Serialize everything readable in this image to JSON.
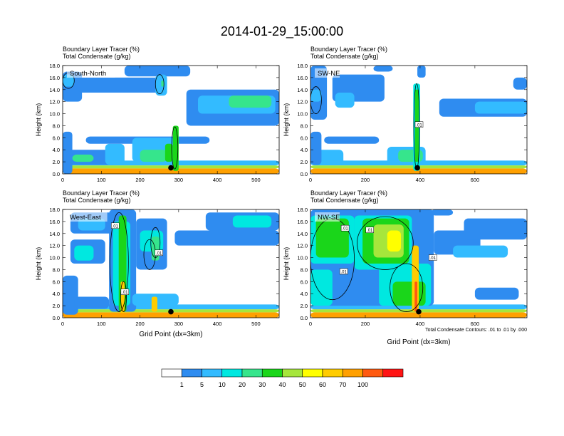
{
  "title": "2014-01-29_15:00:00",
  "palette": {
    "colors": [
      "#ffffff",
      "#2f8cf0",
      "#33bbff",
      "#00e8e0",
      "#36e58c",
      "#1ad61a",
      "#a6e63c",
      "#ffff00",
      "#ffcc00",
      "#ffa000",
      "#ff5a10",
      "#ff1414"
    ],
    "contour_color": "#000000",
    "surface_marker_color": "#000000"
  },
  "chart_data": [
    {
      "type": "contour-cross-section",
      "label": "South-North",
      "title_line1": "Boundary Layer Tracer   (%)",
      "title_line2": "Total Condensate   (g/kg)",
      "ylabel": "Height (km)",
      "xlabel": "",
      "ylim": [
        0,
        18
      ],
      "yticks": [
        "0.0",
        "2.0",
        "4.0",
        "6.0",
        "8.0",
        "10.0",
        "12.0",
        "14.0",
        "16.0",
        "18.0"
      ],
      "xlim": [
        0,
        560
      ],
      "xticks": [
        0,
        100,
        200,
        300,
        400,
        500
      ],
      "marker": {
        "x": 280,
        "y": 1.0
      },
      "contour_labels": [],
      "fields": [
        {
          "x0": 0,
          "x1": 560,
          "y0": 0,
          "y1": 0.9,
          "level": 9
        },
        {
          "x0": 0,
          "x1": 560,
          "y0": 0.9,
          "y1": 1.4,
          "level": 6
        },
        {
          "x0": 0,
          "x1": 560,
          "y0": 1.4,
          "y1": 2.2,
          "level": 2
        },
        {
          "x0": 0,
          "x1": 25,
          "y0": 0,
          "y1": 7,
          "level": 1
        },
        {
          "x0": 10,
          "x1": 140,
          "y0": 1.5,
          "y1": 4,
          "level": 1
        },
        {
          "x0": 25,
          "x1": 80,
          "y0": 2,
          "y1": 3.2,
          "level": 4
        },
        {
          "x0": 110,
          "x1": 160,
          "y0": 1.5,
          "y1": 5,
          "level": 2
        },
        {
          "x0": 60,
          "x1": 380,
          "y0": 5,
          "y1": 6.2,
          "level": 1
        },
        {
          "x0": 180,
          "x1": 290,
          "y0": 2,
          "y1": 6,
          "level": 2
        },
        {
          "x0": 200,
          "x1": 270,
          "y0": 2,
          "y1": 4,
          "level": 4
        },
        {
          "x0": 265,
          "x1": 285,
          "y0": 2,
          "y1": 5,
          "level": 5
        },
        {
          "x0": 285,
          "x1": 300,
          "y0": 0.5,
          "y1": 8,
          "level": 5
        },
        {
          "x0": 0,
          "x1": 50,
          "y0": 12,
          "y1": 17,
          "level": 1
        },
        {
          "x0": 0,
          "x1": 30,
          "y0": 14.5,
          "y1": 16.5,
          "level": 2
        },
        {
          "x0": 40,
          "x1": 250,
          "y0": 13.5,
          "y1": 16,
          "level": 1
        },
        {
          "x0": 160,
          "x1": 330,
          "y0": 16.2,
          "y1": 18,
          "level": 1
        },
        {
          "x0": 240,
          "x1": 270,
          "y0": 13,
          "y1": 16.5,
          "level": 2
        },
        {
          "x0": 255,
          "x1": 262,
          "y0": 14.5,
          "y1": 15.5,
          "level": 4
        },
        {
          "x0": 320,
          "x1": 560,
          "y0": 8,
          "y1": 14,
          "level": 1
        },
        {
          "x0": 350,
          "x1": 550,
          "y0": 10,
          "y1": 13,
          "level": 2
        },
        {
          "x0": 430,
          "x1": 540,
          "y0": 11,
          "y1": 13,
          "level": 4
        }
      ],
      "contours": [
        {
          "x0": 0,
          "x1": 30,
          "y0": 14.2,
          "y1": 16.8
        },
        {
          "x0": 240,
          "x1": 262,
          "y0": 13.3,
          "y1": 16.5
        },
        {
          "x0": 282,
          "x1": 298,
          "y0": 0.8,
          "y1": 7.8
        }
      ]
    },
    {
      "type": "contour-cross-section",
      "label": "SW-NE",
      "title_line1": "Boundary Layer Tracer   (%)",
      "title_line2": "Total Condensate   (g/kg)",
      "ylabel": "Height (km)",
      "xlabel": "",
      "ylim": [
        0,
        18
      ],
      "yticks": [
        "0.0",
        "2.0",
        "4.0",
        "6.0",
        "8.0",
        "10.0",
        "12.0",
        "14.0",
        "16.0",
        "18.0"
      ],
      "xlim": [
        0,
        790
      ],
      "xticks": [
        0,
        200,
        400,
        600
      ],
      "marker": {
        "x": 390,
        "y": 1.0
      },
      "contour_labels": [
        {
          "x": 395,
          "y": 8.2,
          "text": ".01"
        }
      ],
      "fields": [
        {
          "x0": 0,
          "x1": 790,
          "y0": 0,
          "y1": 0.9,
          "level": 9
        },
        {
          "x0": 0,
          "x1": 790,
          "y0": 0.9,
          "y1": 1.4,
          "level": 6
        },
        {
          "x0": 0,
          "x1": 790,
          "y0": 1.4,
          "y1": 2.2,
          "level": 2
        },
        {
          "x0": 0,
          "x1": 120,
          "y0": 1.5,
          "y1": 4,
          "level": 2
        },
        {
          "x0": 0,
          "x1": 40,
          "y0": 1.5,
          "y1": 7,
          "level": 1
        },
        {
          "x0": 50,
          "x1": 250,
          "y0": 5,
          "y1": 6.2,
          "level": 1
        },
        {
          "x0": 280,
          "x1": 420,
          "y0": 1.5,
          "y1": 4.5,
          "level": 2
        },
        {
          "x0": 320,
          "x1": 410,
          "y0": 2,
          "y1": 4,
          "level": 4
        },
        {
          "x0": 375,
          "x1": 400,
          "y0": 0.5,
          "y1": 15,
          "level": 3
        },
        {
          "x0": 382,
          "x1": 395,
          "y0": 2,
          "y1": 14,
          "level": 5
        },
        {
          "x0": 0,
          "x1": 60,
          "y0": 9,
          "y1": 18,
          "level": 1
        },
        {
          "x0": 0,
          "x1": 40,
          "y0": 12,
          "y1": 14,
          "level": 2
        },
        {
          "x0": 80,
          "x1": 270,
          "y0": 12,
          "y1": 16.5,
          "level": 1
        },
        {
          "x0": 90,
          "x1": 160,
          "y0": 11,
          "y1": 13.5,
          "level": 2
        },
        {
          "x0": 230,
          "x1": 300,
          "y0": 17,
          "y1": 18,
          "level": 1
        },
        {
          "x0": 390,
          "x1": 420,
          "y0": 16,
          "y1": 18,
          "level": 1
        },
        {
          "x0": 470,
          "x1": 790,
          "y0": 9.5,
          "y1": 12.5,
          "level": 1
        },
        {
          "x0": 600,
          "x1": 790,
          "y0": 10,
          "y1": 12,
          "level": 2
        },
        {
          "x0": 740,
          "x1": 790,
          "y0": 14,
          "y1": 16,
          "level": 1
        }
      ],
      "contours": [
        {
          "x0": 0,
          "x1": 40,
          "y0": 10,
          "y1": 14.5
        },
        {
          "x0": 377,
          "x1": 398,
          "y0": 0.8,
          "y1": 15
        }
      ]
    },
    {
      "type": "contour-cross-section",
      "label": "West-East",
      "title_line1": "Boundary Layer Tracer   (%)",
      "title_line2": "Total Condensate   (g/kg)",
      "ylabel": "Height (km)",
      "xlabel": "Grid Point (dx=3km)",
      "ylim": [
        0,
        18
      ],
      "yticks": [
        "0.0",
        "2.0",
        "4.0",
        "6.0",
        "8.0",
        "10.0",
        "12.0",
        "14.0",
        "16.0",
        "18.0"
      ],
      "xlim": [
        0,
        560
      ],
      "xticks": [
        0,
        100,
        200,
        300,
        400,
        500
      ],
      "marker": {
        "x": 280,
        "y": 1.0
      },
      "contour_labels": [
        {
          "x": 135,
          "y": 15.3,
          "text": ".01"
        },
        {
          "x": 248,
          "y": 10.8,
          "text": ".01"
        },
        {
          "x": 160,
          "y": 4.3,
          "text": ".01"
        }
      ],
      "fields": [
        {
          "x0": 0,
          "x1": 560,
          "y0": 0,
          "y1": 0.9,
          "level": 9
        },
        {
          "x0": 0,
          "x1": 560,
          "y0": 0.9,
          "y1": 1.4,
          "level": 6
        },
        {
          "x0": 0,
          "x1": 560,
          "y0": 1.4,
          "y1": 2.2,
          "level": 2
        },
        {
          "x0": 0,
          "x1": 25,
          "y0": 0,
          "y1": 6,
          "level": 9
        },
        {
          "x0": 0,
          "x1": 40,
          "y0": 0.5,
          "y1": 7,
          "level": 1
        },
        {
          "x0": 30,
          "x1": 120,
          "y0": 1.5,
          "y1": 3.5,
          "level": 1
        },
        {
          "x0": 120,
          "x1": 190,
          "y0": 1,
          "y1": 18,
          "level": 1
        },
        {
          "x0": 130,
          "x1": 175,
          "y0": 2,
          "y1": 16,
          "level": 3
        },
        {
          "x0": 145,
          "x1": 165,
          "y0": 1,
          "y1": 17,
          "level": 5
        },
        {
          "x0": 150,
          "x1": 160,
          "y0": 0.8,
          "y1": 6,
          "level": 8
        },
        {
          "x0": 20,
          "x1": 130,
          "y0": 14,
          "y1": 17.5,
          "level": 1
        },
        {
          "x0": 40,
          "x1": 110,
          "y0": 14.5,
          "y1": 16.5,
          "level": 2
        },
        {
          "x0": 20,
          "x1": 110,
          "y0": 9,
          "y1": 13,
          "level": 1
        },
        {
          "x0": 30,
          "x1": 80,
          "y0": 9.5,
          "y1": 12,
          "level": 3
        },
        {
          "x0": 190,
          "x1": 270,
          "y0": 8,
          "y1": 16.5,
          "level": 1
        },
        {
          "x0": 200,
          "x1": 260,
          "y0": 11,
          "y1": 14.5,
          "level": 3
        },
        {
          "x0": 230,
          "x1": 250,
          "y0": 9.5,
          "y1": 13.5,
          "level": 4
        },
        {
          "x0": 180,
          "x1": 300,
          "y0": 2,
          "y1": 4,
          "level": 2
        },
        {
          "x0": 230,
          "x1": 245,
          "y0": 1,
          "y1": 3.5,
          "level": 8
        },
        {
          "x0": 290,
          "x1": 560,
          "y0": 12,
          "y1": 14.5,
          "level": 1
        },
        {
          "x0": 370,
          "x1": 560,
          "y0": 14.5,
          "y1": 17.5,
          "level": 1
        },
        {
          "x0": 440,
          "x1": 540,
          "y0": 15,
          "y1": 17,
          "level": 3
        }
      ],
      "contours": [
        {
          "x0": 122,
          "x1": 170,
          "y0": 1,
          "y1": 17.5
        },
        {
          "x0": 228,
          "x1": 252,
          "y0": 10,
          "y1": 15
        },
        {
          "x0": 210,
          "x1": 240,
          "y0": 8,
          "y1": 13
        },
        {
          "x0": 150,
          "x1": 165,
          "y0": 1,
          "y1": 6
        }
      ]
    },
    {
      "type": "contour-cross-section",
      "label": "NW-SE",
      "title_line1": "Boundary Layer Tracer   (%)",
      "title_line2": "Total Condensate   (g/kg)",
      "ylabel": "Height (km)",
      "xlabel": "Grid Point (dx=3km)",
      "ylim": [
        0,
        18
      ],
      "yticks": [
        "0.0",
        "2.0",
        "4.0",
        "6.0",
        "8.0",
        "10.0",
        "12.0",
        "14.0",
        "16.0",
        "18.0"
      ],
      "xlim": [
        0,
        790
      ],
      "xticks": [
        0,
        200,
        400,
        600
      ],
      "marker": {
        "x": 395,
        "y": 1.0
      },
      "contour_labels": [
        {
          "x": 125,
          "y": 14.9,
          "text": ".01"
        },
        {
          "x": 215,
          "y": 14.6,
          "text": ".01"
        },
        {
          "x": 120,
          "y": 7.7,
          "text": ".01"
        },
        {
          "x": 445,
          "y": 10.0,
          "text": ".01"
        }
      ],
      "bottom_note": "Total Condensate Contours: .01 to .01 by .000",
      "fields": [
        {
          "x0": 0,
          "x1": 790,
          "y0": 0,
          "y1": 0.9,
          "level": 9
        },
        {
          "x0": 0,
          "x1": 790,
          "y0": 0.9,
          "y1": 1.4,
          "level": 6
        },
        {
          "x0": 0,
          "x1": 790,
          "y0": 1.4,
          "y1": 2.2,
          "level": 2
        },
        {
          "x0": 0,
          "x1": 450,
          "y0": 2,
          "y1": 18,
          "level": 1
        },
        {
          "x0": 0,
          "x1": 160,
          "y0": 9,
          "y1": 17,
          "level": 3
        },
        {
          "x0": 20,
          "x1": 140,
          "y0": 10,
          "y1": 16.5,
          "level": 5
        },
        {
          "x0": 0,
          "x1": 80,
          "y0": 2,
          "y1": 8,
          "level": 3
        },
        {
          "x0": 160,
          "x1": 370,
          "y0": 8,
          "y1": 17,
          "level": 3
        },
        {
          "x0": 190,
          "x1": 360,
          "y0": 9,
          "y1": 16.5,
          "level": 5
        },
        {
          "x0": 230,
          "x1": 340,
          "y0": 10,
          "y1": 15.5,
          "level": 6
        },
        {
          "x0": 280,
          "x1": 330,
          "y0": 11,
          "y1": 14.5,
          "level": 7
        },
        {
          "x0": 250,
          "x1": 440,
          "y0": 2,
          "y1": 9,
          "level": 3
        },
        {
          "x0": 300,
          "x1": 420,
          "y0": 2,
          "y1": 6,
          "level": 5
        },
        {
          "x0": 370,
          "x1": 395,
          "y0": 1,
          "y1": 12,
          "level": 8
        },
        {
          "x0": 380,
          "x1": 390,
          "y0": 1,
          "y1": 6,
          "level": 10
        },
        {
          "x0": 450,
          "x1": 620,
          "y0": 10.5,
          "y1": 14.5,
          "level": 1
        },
        {
          "x0": 560,
          "x1": 790,
          "y0": 13,
          "y1": 16.5,
          "level": 1
        },
        {
          "x0": 520,
          "x1": 720,
          "y0": 10,
          "y1": 12,
          "level": 2
        },
        {
          "x0": 600,
          "x1": 760,
          "y0": 3,
          "y1": 5,
          "level": 1
        },
        {
          "x0": 440,
          "x1": 520,
          "y0": 17,
          "y1": 18,
          "level": 1
        }
      ],
      "contours": [
        {
          "x0": 0,
          "x1": 160,
          "y0": 3,
          "y1": 16.5
        },
        {
          "x0": 170,
          "x1": 375,
          "y0": 8,
          "y1": 16.8
        },
        {
          "x0": 290,
          "x1": 410,
          "y0": 1,
          "y1": 9
        }
      ]
    }
  ],
  "colorbar": {
    "labels": [
      "1",
      "5",
      "10",
      "20",
      "30",
      "40",
      "50",
      "60",
      "70",
      "100"
    ]
  }
}
